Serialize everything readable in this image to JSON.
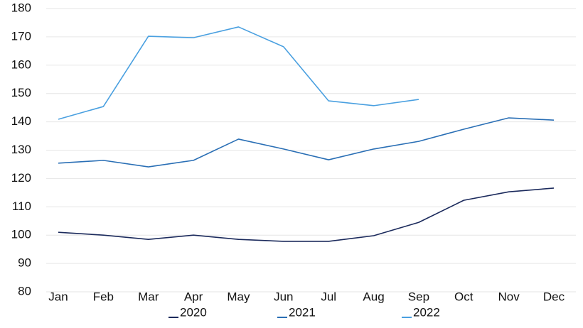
{
  "chart_data": {
    "type": "line",
    "categories": [
      "Jan",
      "Feb",
      "Mar",
      "Apr",
      "May",
      "Jun",
      "Jul",
      "Aug",
      "Sep",
      "Oct",
      "Nov",
      "Dec"
    ],
    "series": [
      {
        "name": "2020",
        "color": "#1b2a5c",
        "values": [
          101,
          100,
          98.5,
          100,
          98.5,
          97.8,
          97.8,
          99.8,
          104.5,
          112.3,
          115.3,
          116.6
        ]
      },
      {
        "name": "2021",
        "color": "#2a6fb5",
        "values": [
          125.4,
          126.4,
          124.1,
          126.4,
          133.9,
          130.4,
          126.6,
          130.4,
          133.1,
          137.4,
          141.4,
          140.6
        ]
      },
      {
        "name": "2022",
        "color": "#4aa0e0",
        "values": [
          140.9,
          145.4,
          170.2,
          169.7,
          173.5,
          166.5,
          147.4,
          145.7,
          147.9,
          null,
          null,
          null
        ]
      }
    ],
    "ylim": [
      80,
      180
    ],
    "yticks": [
      80,
      90,
      100,
      110,
      120,
      130,
      140,
      150,
      160,
      170,
      180
    ],
    "grid": true
  }
}
